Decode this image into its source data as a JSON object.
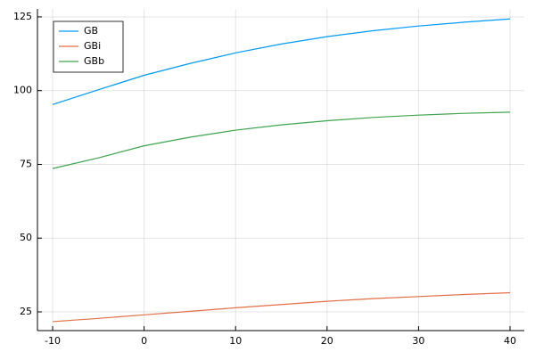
{
  "chart_data": {
    "type": "line",
    "x": [
      -10,
      -5,
      0,
      5,
      10,
      15,
      20,
      25,
      30,
      35,
      40
    ],
    "series": [
      {
        "name": "GB",
        "color": "#009af9",
        "values": [
          95.3,
          100.3,
          105.2,
          109.2,
          112.8,
          115.8,
          118.3,
          120.3,
          121.9,
          123.2,
          124.3
        ]
      },
      {
        "name": "GBi",
        "color": "#e26f46",
        "values": [
          21.7,
          22.8,
          24.0,
          25.2,
          26.4,
          27.5,
          28.6,
          29.5,
          30.2,
          30.9,
          31.5
        ]
      },
      {
        "name": "GBb",
        "color": "#3ea44e",
        "values": [
          73.6,
          77.2,
          81.3,
          84.2,
          86.6,
          88.4,
          89.8,
          90.9,
          91.7,
          92.3,
          92.7
        ]
      }
    ],
    "xlim": [
      -11.66,
      41.56
    ],
    "xticks": [
      -10,
      0,
      10,
      20,
      30,
      40
    ],
    "ylim": [
      18.66,
      127.7
    ],
    "yticks": [
      25,
      50,
      75,
      100,
      125
    ],
    "grid": true,
    "legend": "top-left"
  }
}
